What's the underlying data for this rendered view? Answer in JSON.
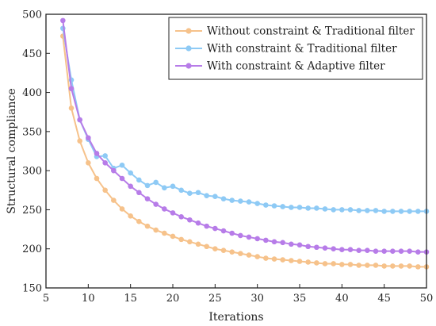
{
  "chart_data": {
    "type": "line",
    "xlabel": "Iterations",
    "ylabel": "Structural compliance",
    "xlim": [
      5,
      50
    ],
    "ylim": [
      150,
      500
    ],
    "xticks": [
      5,
      10,
      15,
      20,
      25,
      30,
      35,
      40,
      45,
      50
    ],
    "yticks": [
      150,
      200,
      250,
      300,
      350,
      400,
      450,
      500
    ],
    "grid": false,
    "legend_position": "top-right",
    "x": [
      7,
      8,
      9,
      10,
      11,
      12,
      13,
      14,
      15,
      16,
      17,
      18,
      19,
      20,
      21,
      22,
      23,
      24,
      25,
      26,
      27,
      28,
      29,
      30,
      31,
      32,
      33,
      34,
      35,
      36,
      37,
      38,
      39,
      40,
      41,
      42,
      43,
      44,
      45,
      46,
      47,
      48,
      49,
      50
    ],
    "series": [
      {
        "name": "Without constraint & Traditional filter",
        "color": "#f6c28b",
        "values": [
          472,
          380,
          338,
          310,
          290,
          275,
          262,
          251,
          242,
          235,
          229,
          224,
          220,
          216,
          212,
          209,
          206,
          203,
          200,
          198,
          196,
          194,
          192,
          190,
          188,
          187,
          186,
          185,
          184,
          183,
          182,
          181,
          181,
          180,
          180,
          179,
          179,
          179,
          178,
          178,
          178,
          178,
          177,
          177
        ]
      },
      {
        "name": "With constraint & Traditional filter",
        "color": "#8ecaf5",
        "values": [
          482,
          416,
          365,
          340,
          318,
          319,
          303,
          307,
          297,
          288,
          281,
          285,
          278,
          280,
          275,
          271,
          272,
          268,
          267,
          264,
          262,
          261,
          260,
          258,
          256,
          255,
          254,
          253,
          253,
          252,
          252,
          251,
          250,
          250,
          250,
          249,
          249,
          249,
          248,
          248,
          248,
          248,
          248,
          248
        ]
      },
      {
        "name": "With constraint & Adaptive filter",
        "color": "#b77ce8",
        "values": [
          492,
          405,
          365,
          342,
          322,
          310,
          300,
          290,
          280,
          272,
          264,
          257,
          251,
          246,
          241,
          237,
          233,
          229,
          226,
          223,
          220,
          217,
          215,
          213,
          211,
          209,
          208,
          206,
          205,
          203,
          202,
          201,
          200,
          199,
          199,
          198,
          198,
          197,
          197,
          197,
          197,
          197,
          196,
          196
        ]
      }
    ]
  }
}
